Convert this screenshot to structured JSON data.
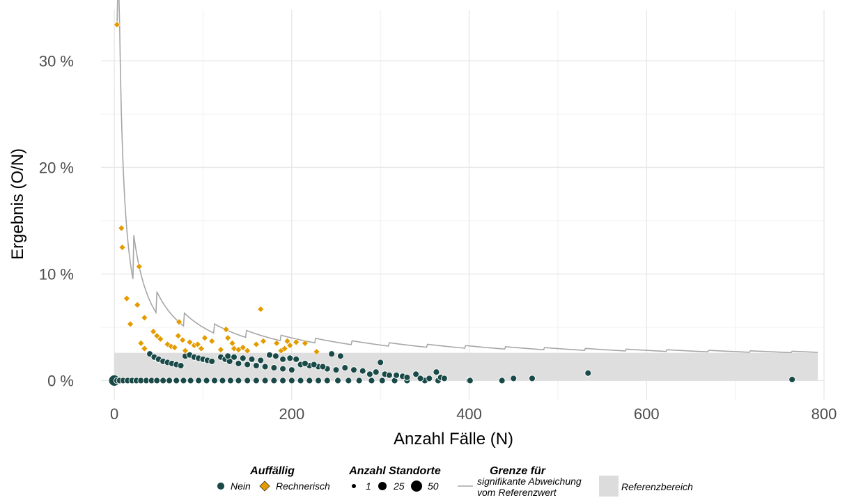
{
  "chart_data": {
    "type": "scatter",
    "title": "",
    "xlabel": "Anzahl Fälle (N)",
    "ylabel": "Ergebnis (O/N)",
    "xlim": [
      -15,
      800
    ],
    "ylim": [
      -1.8,
      34.8
    ],
    "x_ticks": [
      0,
      200,
      400,
      600,
      800
    ],
    "x_tick_labels": [
      "0",
      "200",
      "400",
      "600",
      "800"
    ],
    "y_ticks": [
      0,
      10,
      20,
      30
    ],
    "y_tick_labels": [
      "0 %",
      "10 %",
      "20 %",
      "30 %"
    ],
    "grid": true,
    "legend_position": "bottom",
    "reference_range": {
      "label": "Referenzbereich",
      "y_min": 0,
      "y_max": 2.6,
      "x_max": 793,
      "color": "#dcdcdc"
    },
    "limit_line": {
      "label": "signifikante Abweichung vom Referenzwert",
      "color": "#a6a6a6",
      "x_end": 793
    },
    "series": [
      {
        "name": "Nein",
        "color": "#1a4a48",
        "marker": "circle",
        "points": [
          [
            0,
            0
          ],
          [
            3,
            0
          ],
          [
            6,
            0
          ],
          [
            10,
            0
          ],
          [
            15,
            0
          ],
          [
            20,
            0
          ],
          [
            25,
            0
          ],
          [
            30,
            0
          ],
          [
            36,
            0
          ],
          [
            42,
            0
          ],
          [
            48,
            0
          ],
          [
            55,
            0
          ],
          [
            62,
            0
          ],
          [
            70,
            0
          ],
          [
            78,
            0
          ],
          [
            86,
            0
          ],
          [
            95,
            0
          ],
          [
            104,
            0
          ],
          [
            113,
            0
          ],
          [
            122,
            0
          ],
          [
            131,
            0
          ],
          [
            140,
            0
          ],
          [
            150,
            0
          ],
          [
            160,
            0
          ],
          [
            170,
            0
          ],
          [
            180,
            0
          ],
          [
            190,
            0
          ],
          [
            200,
            0
          ],
          [
            210,
            0
          ],
          [
            220,
            0
          ],
          [
            230,
            0
          ],
          [
            240,
            0
          ],
          [
            252,
            0
          ],
          [
            264,
            0
          ],
          [
            276,
            0
          ],
          [
            290,
            0
          ],
          [
            302,
            0
          ],
          [
            316,
            0
          ],
          [
            330,
            0
          ],
          [
            350,
            0
          ],
          [
            365,
            0
          ],
          [
            400,
            0
          ],
          [
            437,
            0
          ],
          [
            40,
            2.5
          ],
          [
            45,
            2.2
          ],
          [
            50,
            2.0
          ],
          [
            55,
            1.8
          ],
          [
            60,
            1.7
          ],
          [
            65,
            1.6
          ],
          [
            70,
            1.5
          ],
          [
            75,
            1.4
          ],
          [
            80,
            2.3
          ],
          [
            85,
            2.4
          ],
          [
            90,
            2.2
          ],
          [
            95,
            2.1
          ],
          [
            100,
            2.0
          ],
          [
            105,
            1.9
          ],
          [
            110,
            1.8
          ],
          [
            120,
            2.2
          ],
          [
            125,
            2.0
          ],
          [
            130,
            1.8
          ],
          [
            140,
            1.6
          ],
          [
            150,
            1.5
          ],
          [
            160,
            1.4
          ],
          [
            170,
            1.3
          ],
          [
            180,
            1.2
          ],
          [
            190,
            1.1
          ],
          [
            200,
            1.0
          ],
          [
            210,
            1.5
          ],
          [
            220,
            1.4
          ],
          [
            230,
            1.3
          ],
          [
            240,
            1.1
          ],
          [
            250,
            1.0
          ],
          [
            128,
            2.3
          ],
          [
            135,
            2.2
          ],
          [
            145,
            2.1
          ],
          [
            155,
            2.0
          ],
          [
            165,
            1.9
          ],
          [
            175,
            2.4
          ],
          [
            182,
            2.3
          ],
          [
            190,
            2.0
          ],
          [
            198,
            2.1
          ],
          [
            205,
            2.0
          ],
          [
            215,
            1.6
          ],
          [
            225,
            1.5
          ],
          [
            235,
            1.3
          ],
          [
            245,
            2.5
          ],
          [
            255,
            2.3
          ],
          [
            260,
            1.2
          ],
          [
            270,
            1.0
          ],
          [
            280,
            0.9
          ],
          [
            288,
            0.6
          ],
          [
            295,
            0.8
          ],
          [
            300,
            1.7
          ],
          [
            305,
            0.6
          ],
          [
            310,
            0.5
          ],
          [
            318,
            0.5
          ],
          [
            325,
            0.4
          ],
          [
            330,
            0.3
          ],
          [
            340,
            0.6
          ],
          [
            345,
            0.2
          ],
          [
            355,
            0.2
          ],
          [
            363,
            0.8
          ],
          [
            368,
            0.3
          ],
          [
            372,
            0.2
          ],
          [
            401,
            0.0
          ],
          [
            450,
            0.2
          ],
          [
            471,
            0.2
          ],
          [
            534,
            0.7
          ],
          [
            764,
            0.1
          ]
        ]
      },
      {
        "name": "Rechnerisch",
        "color": "#e39b00",
        "marker": "diamond",
        "points": [
          [
            3,
            33.4
          ],
          [
            8,
            14.3
          ],
          [
            9,
            12.5
          ],
          [
            14,
            7.7
          ],
          [
            18,
            5.3
          ],
          [
            26,
            7.1
          ],
          [
            28,
            10.7
          ],
          [
            30,
            3.5
          ],
          [
            34,
            5.9
          ],
          [
            34,
            3.0
          ],
          [
            44,
            4.6
          ],
          [
            48,
            4.2
          ],
          [
            52,
            3.9
          ],
          [
            60,
            3.4
          ],
          [
            64,
            3.2
          ],
          [
            68,
            3.1
          ],
          [
            72,
            4.2
          ],
          [
            73,
            5.5
          ],
          [
            77,
            3.8
          ],
          [
            80,
            2.8
          ],
          [
            85,
            3.6
          ],
          [
            90,
            3.3
          ],
          [
            94,
            3.4
          ],
          [
            98,
            3.0
          ],
          [
            102,
            4.0
          ],
          [
            110,
            3.7
          ],
          [
            120,
            2.9
          ],
          [
            126,
            4.8
          ],
          [
            128,
            4.0
          ],
          [
            133,
            3.5
          ],
          [
            135,
            3.0
          ],
          [
            140,
            2.9
          ],
          [
            145,
            3.1
          ],
          [
            150,
            2.8
          ],
          [
            160,
            3.4
          ],
          [
            165,
            6.7
          ],
          [
            168,
            3.7
          ],
          [
            183,
            3.5
          ],
          [
            188,
            2.8
          ],
          [
            192,
            3.0
          ],
          [
            195,
            3.7
          ],
          [
            198,
            3.3
          ],
          [
            205,
            3.6
          ],
          [
            215,
            3.5
          ],
          [
            228,
            2.7
          ]
        ]
      }
    ]
  },
  "legend": {
    "auffaellig": {
      "title": "Auffällig",
      "items": [
        {
          "label": "Nein",
          "color": "#1a4a48"
        },
        {
          "label": "Rechnerisch",
          "color": "#e39b00"
        }
      ]
    },
    "standorte": {
      "title": "Anzahl Standorte",
      "items": [
        {
          "label": "1"
        },
        {
          "label": "25"
        },
        {
          "label": "50"
        }
      ]
    },
    "grenze": {
      "title": "Grenze für",
      "line1": "signifikante Abweichung",
      "line2": "vom Referenzwert"
    },
    "referenz": {
      "label": "Referenzbereich"
    }
  }
}
